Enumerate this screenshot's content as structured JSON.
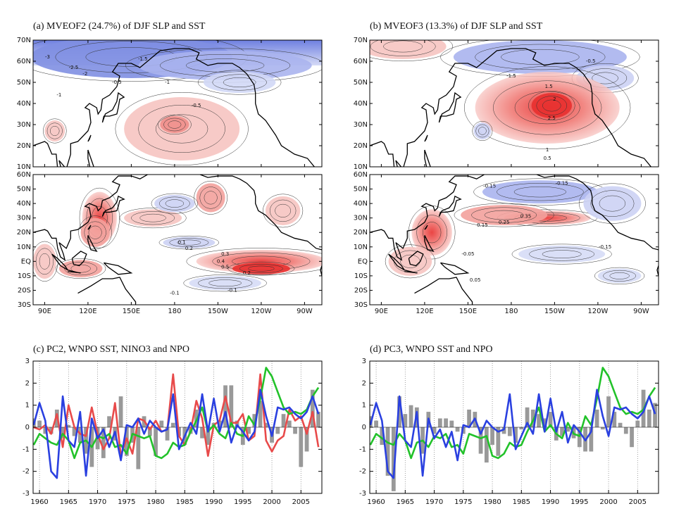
{
  "maps": [
    {
      "title": "(a) MVEOF2 (24.7%) of DJF SLP and SST",
      "lonlim": [
        82,
        282
      ],
      "lon_ticks": [
        {
          "value": 90,
          "label": "90E"
        },
        {
          "value": 120,
          "label": "120E"
        },
        {
          "value": 150,
          "label": "150E"
        },
        180,
        {
          "value": 210,
          "label": "150W"
        },
        {
          "value": 240,
          "label": "120W"
        },
        {
          "value": 270,
          "label": "90W"
        }
      ],
      "slp": {
        "latlim": [
          10,
          70
        ],
        "lat_ticks": [
          {
            "value": 10,
            "label": "10N"
          },
          {
            "value": 20,
            "label": "20N"
          },
          {
            "value": 30,
            "label": "30N"
          },
          {
            "value": 40,
            "label": "40N"
          },
          {
            "value": 50,
            "label": "50N"
          },
          {
            "value": 60,
            "label": "60N"
          },
          {
            "value": 70,
            "label": "70N"
          }
        ],
        "contour_labels": [
          "-3",
          "-2.5",
          "-2",
          "-1.5",
          "-1",
          "-0.5",
          "-1",
          "-0.5"
        ]
      },
      "sst": {
        "latlim": [
          -30,
          60
        ],
        "lat_ticks": [
          {
            "value": -30,
            "label": "30S"
          },
          {
            "value": -20,
            "label": "20S"
          },
          {
            "value": -10,
            "label": "10S"
          },
          {
            "value": 0,
            "label": "EQ"
          },
          {
            "value": 10,
            "label": "10N"
          },
          {
            "value": 20,
            "label": "20N"
          },
          {
            "value": 30,
            "label": "30N"
          },
          {
            "value": 40,
            "label": "40N"
          },
          {
            "value": 50,
            "label": "50N"
          },
          {
            "value": 60,
            "label": "60N"
          }
        ],
        "contour_labels": [
          "0.1",
          "0.2",
          "0.3",
          "0.4",
          "0.5",
          "-0.1",
          "0.2",
          "-0.1"
        ]
      }
    },
    {
      "title": "(b) MVEOF3 (13.3%) of DJF SLP and SST",
      "lonlim": [
        82,
        282
      ],
      "lon_ticks": [
        {
          "value": 90,
          "label": "90E"
        },
        {
          "value": 120,
          "label": "120E"
        },
        {
          "value": 150,
          "label": "150E"
        },
        180,
        {
          "value": 210,
          "label": "150W"
        },
        {
          "value": 240,
          "label": "120W"
        },
        {
          "value": 270,
          "label": "90W"
        }
      ],
      "slp": {
        "latlim": [
          10,
          70
        ],
        "lat_ticks": [
          {
            "value": 10,
            "label": "10N"
          },
          {
            "value": 20,
            "label": "20N"
          },
          {
            "value": 30,
            "label": "30N"
          },
          {
            "value": 40,
            "label": "40N"
          },
          {
            "value": 50,
            "label": "50N"
          },
          {
            "value": 60,
            "label": "60N"
          },
          {
            "value": 70,
            "label": "70N"
          }
        ],
        "contour_labels": [
          "-1.5",
          "-0.5",
          "1.5",
          "2",
          "2.5",
          "1",
          "0.5"
        ]
      },
      "sst": {
        "latlim": [
          -30,
          60
        ],
        "lat_ticks": [
          {
            "value": -30,
            "label": "30S"
          },
          {
            "value": -20,
            "label": "20S"
          },
          {
            "value": -10,
            "label": "10S"
          },
          {
            "value": 0,
            "label": "EQ"
          },
          {
            "value": 10,
            "label": "10N"
          },
          {
            "value": 20,
            "label": "20N"
          },
          {
            "value": 30,
            "label": "30N"
          },
          {
            "value": 40,
            "label": "40N"
          },
          {
            "value": 50,
            "label": "50N"
          },
          {
            "value": 60,
            "label": "60N"
          }
        ],
        "contour_labels": [
          "-0.15",
          "-0.15",
          "0.35",
          "0.25",
          "0.15",
          "-0.05",
          "0.05",
          "-0.15"
        ]
      }
    }
  ],
  "chart_data": [
    {
      "type": "combo",
      "title": "(c) PC2, WNPO SST, NINO3 and NPO",
      "x": [
        1959,
        1960,
        1961,
        1962,
        1963,
        1964,
        1965,
        1966,
        1967,
        1968,
        1969,
        1970,
        1971,
        1972,
        1973,
        1974,
        1975,
        1976,
        1977,
        1978,
        1979,
        1980,
        1981,
        1982,
        1983,
        1984,
        1985,
        1986,
        1987,
        1988,
        1989,
        1990,
        1991,
        1992,
        1993,
        1994,
        1995,
        1996,
        1997,
        1998,
        1999,
        2000,
        2001,
        2002,
        2003,
        2004,
        2005,
        2006,
        2007,
        2008
      ],
      "series": [
        {
          "type": "bar",
          "color": "#999999",
          "values": [
            0.4,
            0.3,
            -0.3,
            -0.3,
            0.8,
            -0.5,
            0.1,
            -0.4,
            -0.7,
            -1.2,
            -1.8,
            -1.0,
            -1.4,
            0.5,
            -0.6,
            1.4,
            -1.3,
            -0.7,
            -1.9,
            0.5,
            -0.4,
            -1.3,
            0.3,
            -0.6,
            0.2,
            -0.4,
            -0.8,
            -0.3,
            0.8,
            -0.5,
            -0.8,
            0.2,
            0.3,
            1.9,
            1.9,
            0.3,
            -0.8,
            -0.3,
            0.6,
            1.2,
            0.2,
            -0.7,
            -0.3,
            0.6,
            0.3,
            -0.3,
            -1.8,
            -1.1,
            1.7,
            0.7
          ]
        },
        {
          "type": "line",
          "color": "#e84a4a",
          "values": [
            0.0,
            -0.1,
            0.1,
            -0.3,
            0.6,
            -0.9,
            1.0,
            0.0,
            -0.3,
            -0.4,
            0.9,
            -0.3,
            -1.0,
            -0.5,
            1.1,
            -1.3,
            -0.5,
            -1.2,
            0.4,
            0.3,
            -0.1,
            0.3,
            -0.2,
            -0.1,
            2.4,
            -0.4,
            -0.8,
            -0.2,
            1.2,
            0.4,
            -1.3,
            0.1,
            0.3,
            1.4,
            0.2,
            0.2,
            0.6,
            -0.6,
            -0.4,
            2.4,
            -0.6,
            -1.1,
            -0.6,
            -0.4,
            0.8,
            0.3,
            0.5,
            -0.3,
            0.7,
            -0.9
          ]
        },
        {
          "type": "line",
          "color": "#22c22a",
          "values": [
            -0.8,
            -0.3,
            -0.5,
            -0.7,
            -0.8,
            -0.3,
            -0.6,
            -1.4,
            -0.7,
            -0.6,
            -0.9,
            -0.4,
            -0.5,
            -0.3,
            -0.9,
            -0.8,
            -1.2,
            -0.3,
            -0.4,
            -0.5,
            -0.4,
            -1.3,
            -1.4,
            -1.2,
            -0.7,
            -0.9,
            -0.8,
            -0.2,
            0.3,
            0.9,
            -0.2,
            0.1,
            -0.3,
            -0.5,
            0.2,
            -0.3,
            -0.4,
            0.5,
            0.1,
            1.3,
            2.7,
            2.3,
            1.6,
            0.9,
            0.6,
            0.7,
            0.6,
            0.8,
            1.4,
            1.8
          ]
        },
        {
          "type": "line",
          "color": "#2a40e0",
          "values": [
            0.1,
            1.1,
            0.3,
            -2.0,
            -2.3,
            1.4,
            -0.6,
            -0.9,
            0.7,
            -2.2,
            0.4,
            -0.5,
            -0.1,
            -0.9,
            -0.2,
            -1.5,
            0.1,
            0.0,
            0.4,
            -0.3,
            0.3,
            0.0,
            -0.2,
            -0.1,
            1.5,
            -1.0,
            -0.4,
            0.2,
            -0.3,
            1.5,
            -0.2,
            1.3,
            -0.2,
            0.7,
            -0.7,
            0.1,
            -0.2,
            -0.6,
            -0.2,
            1.7,
            0.5,
            -0.4,
            0.9,
            0.8,
            0.9,
            0.6,
            0.4,
            0.7,
            1.4,
            0.6
          ]
        }
      ],
      "xlim": [
        1958.9,
        2008.6
      ],
      "xticks": [
        1960,
        1965,
        1970,
        1975,
        1980,
        1985,
        1990,
        1995,
        2000,
        2005
      ],
      "ylim": [
        -3,
        3
      ],
      "yticks": [
        -3,
        -2,
        -1,
        0,
        1,
        2,
        3
      ],
      "grid": true
    },
    {
      "type": "combo",
      "title": "(d) PC3, WNPO SST and NPO",
      "x": [
        1959,
        1960,
        1961,
        1962,
        1963,
        1964,
        1965,
        1966,
        1967,
        1968,
        1969,
        1970,
        1971,
        1972,
        1973,
        1974,
        1975,
        1976,
        1977,
        1978,
        1979,
        1980,
        1981,
        1982,
        1983,
        1984,
        1985,
        1986,
        1987,
        1988,
        1989,
        1990,
        1991,
        1992,
        1993,
        1994,
        1995,
        1996,
        1997,
        1998,
        1999,
        2000,
        2001,
        2002,
        2003,
        2004,
        2005,
        2006,
        2007,
        2008
      ],
      "series": [
        {
          "type": "bar",
          "color": "#999999",
          "values": [
            0.5,
            0.3,
            -0.8,
            -2.2,
            -2.9,
            1.4,
            0.6,
            1.0,
            0.9,
            -1.2,
            0.7,
            -0.3,
            0.4,
            0.4,
            0.3,
            -0.2,
            -0.3,
            0.8,
            0.7,
            -1.2,
            -1.6,
            -0.8,
            -1.3,
            -0.3,
            -0.4,
            -0.7,
            -0.1,
            0.9,
            0.8,
            0.6,
            0.4,
            0.7,
            -0.6,
            -0.4,
            -0.2,
            -0.5,
            -0.9,
            -1.1,
            -1.1,
            0.8,
            -0.1,
            1.4,
            0.7,
            0.2,
            -0.3,
            -0.9,
            0.3,
            1.7,
            0.8,
            1.1
          ]
        },
        {
          "type": "line",
          "color": "#22c22a",
          "values": [
            -0.8,
            -0.3,
            -0.5,
            -0.7,
            -0.8,
            -0.3,
            -0.6,
            -1.4,
            -0.7,
            -0.6,
            -0.9,
            -0.4,
            -0.5,
            -0.3,
            -0.9,
            -0.8,
            -1.2,
            -0.3,
            -0.4,
            -0.5,
            -0.4,
            -1.3,
            -1.4,
            -1.2,
            -0.7,
            -0.9,
            -0.8,
            -0.2,
            0.3,
            0.9,
            -0.2,
            0.1,
            -0.3,
            -0.5,
            0.2,
            -0.3,
            -0.4,
            0.5,
            0.1,
            1.3,
            2.7,
            2.3,
            1.6,
            0.9,
            0.6,
            0.7,
            0.6,
            0.8,
            1.4,
            1.8
          ]
        },
        {
          "type": "line",
          "color": "#2a40e0",
          "values": [
            0.1,
            1.1,
            0.3,
            -2.0,
            -2.3,
            1.4,
            -0.6,
            -0.9,
            0.7,
            -2.2,
            0.4,
            -0.5,
            -0.1,
            -0.9,
            -0.2,
            -1.5,
            0.1,
            0.0,
            0.4,
            -0.3,
            0.3,
            0.0,
            -0.2,
            -0.1,
            1.5,
            -1.0,
            -0.4,
            0.2,
            -0.3,
            1.5,
            -0.2,
            1.3,
            -0.2,
            0.7,
            -0.7,
            0.1,
            -0.2,
            -0.6,
            -0.2,
            1.7,
            0.5,
            -0.4,
            0.9,
            0.8,
            0.9,
            0.6,
            0.4,
            0.7,
            1.4,
            0.6
          ]
        }
      ],
      "xlim": [
        1958.9,
        2008.6
      ],
      "xticks": [
        1960,
        1965,
        1970,
        1975,
        1980,
        1985,
        1990,
        1995,
        2000,
        2005
      ],
      "ylim": [
        -3,
        3
      ],
      "yticks": [
        -3,
        -2,
        -1,
        0,
        1,
        2,
        3
      ],
      "grid": true
    }
  ]
}
